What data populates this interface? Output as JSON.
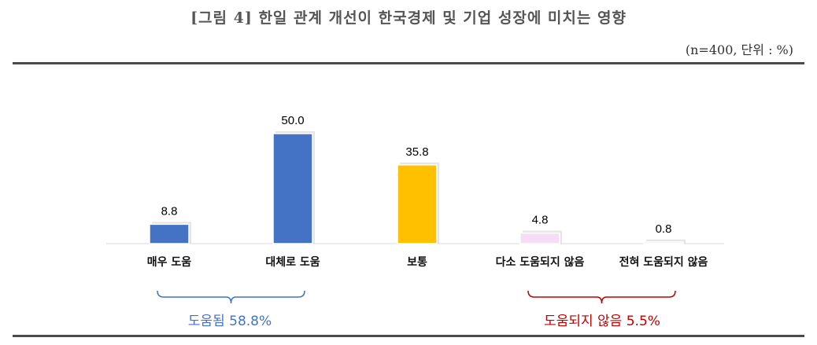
{
  "header": {
    "title": "[그림 4] 한일 관계 개선이 한국경제 및 기업 성장에 미치는 영향",
    "unit": "(n=400, 단위 : %)"
  },
  "chart_data": {
    "type": "bar",
    "categories": [
      "매우 도움",
      "대체로 도움",
      "보통",
      "다소 도움되지 않음",
      "전혀 도움되지 않음"
    ],
    "values": [
      8.8,
      50.0,
      35.8,
      4.8,
      0.8
    ],
    "value_labels": [
      "8.8",
      "50.0",
      "35.8",
      "4.8",
      "0.8"
    ],
    "colors": [
      "#4472c4",
      "#4472c4",
      "#ffc000",
      "#f5ddf5",
      "#eeeeee"
    ],
    "ylim": [
      0,
      50
    ],
    "grid": false,
    "groups": [
      {
        "label": "도움됨 58.8%",
        "color": "#4472c4",
        "from": 0,
        "to": 1
      },
      {
        "label": "도움되지 않음 5.5%",
        "color": "#c00000",
        "from": 3,
        "to": 4
      }
    ]
  }
}
